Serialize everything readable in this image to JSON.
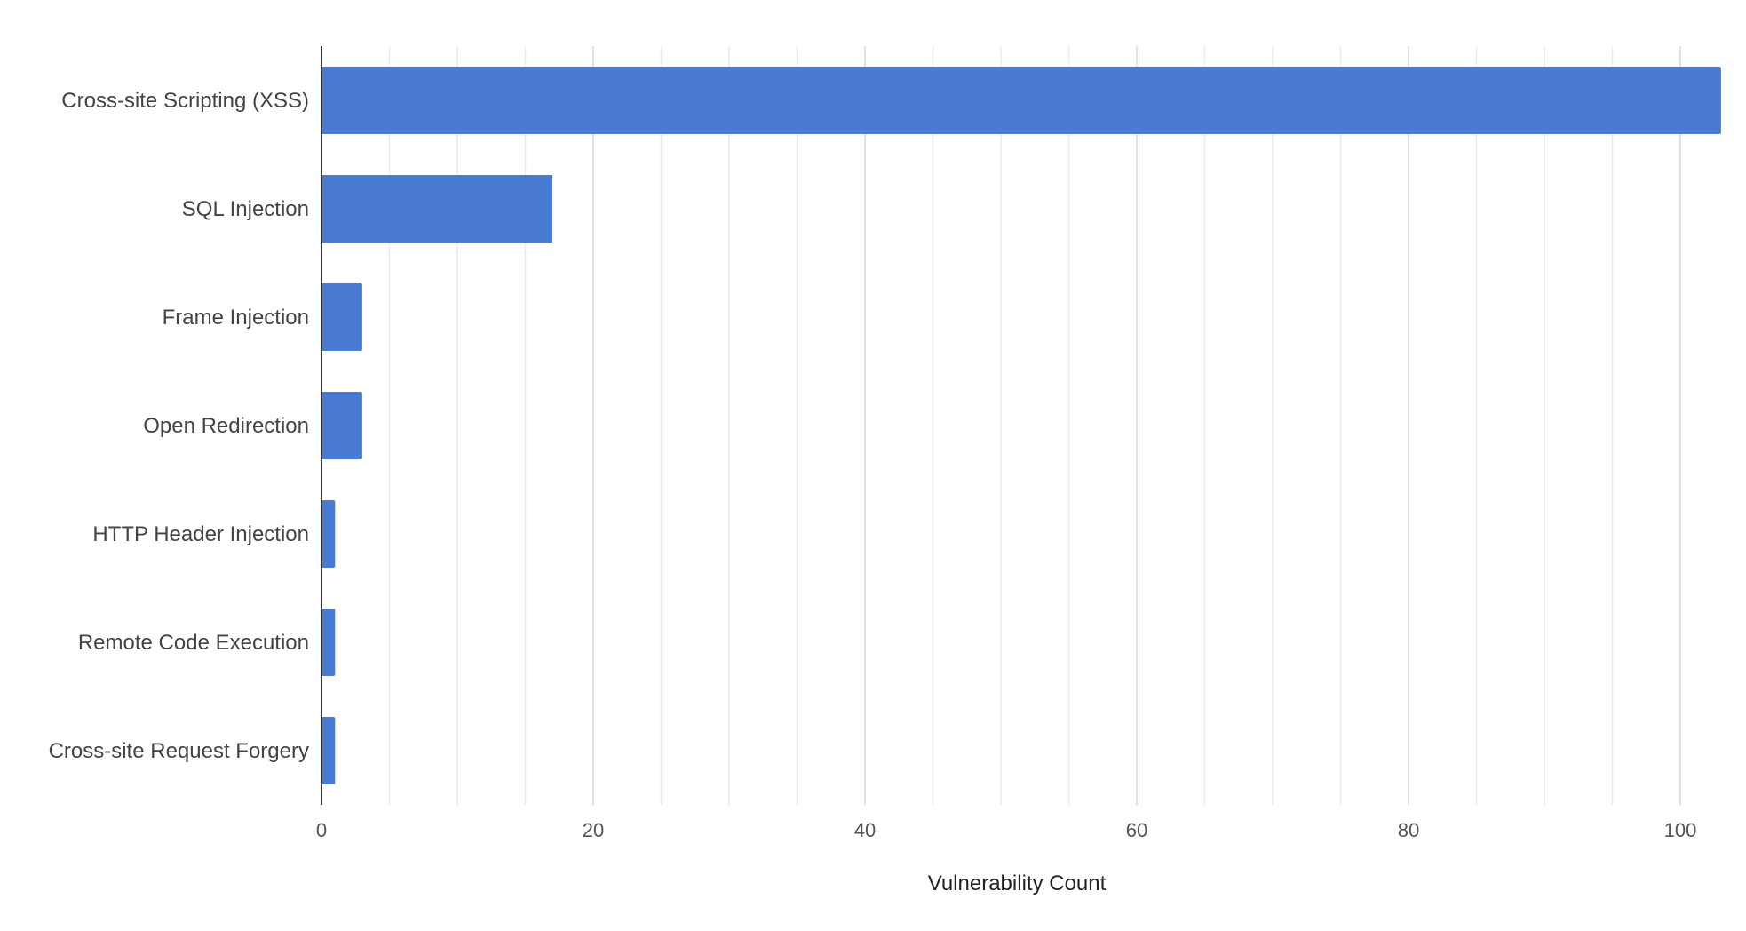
{
  "chart_data": {
    "type": "bar",
    "orientation": "horizontal",
    "categories": [
      "Cross-site Scripting (XSS)",
      "SQL Injection",
      "Frame Injection",
      "Open Redirection",
      "HTTP Header Injection",
      "Remote Code Execution",
      "Cross-site Request Forgery"
    ],
    "values": [
      103,
      17,
      3,
      3,
      1,
      1,
      1
    ],
    "xlabel": "Vulnerability Count",
    "xlim": [
      0,
      105
    ],
    "x_ticks": [
      0,
      20,
      40,
      60,
      80,
      100
    ],
    "x_tick_labels": [
      "0",
      "20",
      "40",
      "60",
      "80",
      "100"
    ],
    "minor_gridlines": true,
    "bar_color": "#4a7bd3",
    "grid_color": "#d9d9d9",
    "axis_color": "#333333"
  }
}
